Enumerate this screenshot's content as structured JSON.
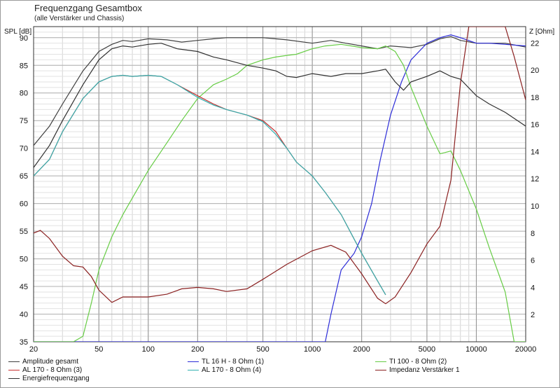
{
  "chart_data": {
    "type": "line",
    "title": "Frequenzgang Gesamtbox",
    "subtitle": "(alle Verstärker und Chassis)",
    "ylabel": "SPL [dB]",
    "y2label": "Z [Ohm]",
    "x_scale": "log",
    "xlim": [
      20,
      20000
    ],
    "ylim": [
      35,
      92
    ],
    "y2lim": [
      0,
      23.2
    ],
    "x_ticks": [
      20,
      50,
      100,
      200,
      500,
      1000,
      2000,
      5000,
      10000,
      20000
    ],
    "x_tick_labels": [
      "20",
      "50",
      "100",
      "200",
      "500",
      "1000",
      "2000",
      "5000",
      "10000",
      "20000"
    ],
    "y_ticks": [
      35,
      40,
      45,
      50,
      55,
      60,
      65,
      70,
      75,
      80,
      85,
      90
    ],
    "y2_ticks": [
      2,
      4,
      6,
      8,
      10,
      12,
      14,
      16,
      18,
      20,
      22
    ],
    "grid": true,
    "legend_position": "bottom",
    "series": [
      {
        "name": "Amplitude gesamt",
        "color": "#404040",
        "axis": "left",
        "x": [
          20,
          25,
          30,
          40,
          50,
          60,
          70,
          80,
          100,
          130,
          160,
          200,
          250,
          300,
          400,
          500,
          700,
          1000,
          1300,
          1600,
          2000,
          2500,
          3000,
          4000,
          5000,
          6000,
          7000,
          8000,
          10000,
          12000,
          15000,
          20000
        ],
        "y": [
          70.5,
          74,
          78,
          84,
          87.5,
          88.8,
          89.5,
          89.3,
          89.8,
          89.6,
          89.2,
          89.5,
          89.8,
          90,
          90,
          90,
          89.6,
          89,
          89.5,
          89,
          88.5,
          88,
          88.5,
          88.2,
          88.8,
          89.8,
          90.2,
          89.5,
          89,
          89,
          89,
          88.3
        ]
      },
      {
        "name": "TL 16 H - 8 Ohm (1)",
        "color": "#2c2cd8",
        "axis": "left",
        "x": [
          20,
          1100,
          1200,
          1300,
          1500,
          1800,
          2000,
          2300,
          2600,
          3000,
          3500,
          4000,
          5000,
          6000,
          7000,
          8000,
          10000,
          12000,
          15000,
          20000
        ],
        "y": [
          35,
          35,
          35,
          40,
          48,
          51,
          54,
          60,
          68,
          76,
          82,
          86,
          89,
          90,
          90.5,
          90,
          89,
          89,
          88.8,
          88.5
        ]
      },
      {
        "name": "TI 100 - 8 Ohm (2)",
        "color": "#66cc44",
        "axis": "left",
        "x": [
          20,
          35,
          40,
          45,
          50,
          60,
          70,
          80,
          100,
          130,
          160,
          200,
          250,
          300,
          350,
          400,
          500,
          600,
          700,
          800,
          1000,
          1200,
          1500,
          2000,
          2500,
          2800,
          3200,
          3600,
          4000,
          5000,
          6000,
          7000,
          8000,
          10000,
          12000,
          15000,
          17000,
          20000
        ],
        "y": [
          35,
          35,
          36,
          42,
          48,
          54,
          58,
          61,
          66,
          71,
          75,
          79,
          81.5,
          82.5,
          83.5,
          85,
          86,
          86.5,
          86.8,
          87,
          88,
          88.5,
          88.8,
          88.2,
          88,
          88.5,
          87.5,
          85,
          81,
          74,
          69,
          69.5,
          66,
          59,
          52,
          44,
          35,
          35
        ]
      },
      {
        "name": "AL 170 - 8 Ohm (3)",
        "color": "#c83030",
        "axis": "left",
        "x": [
          20,
          25,
          30,
          40,
          50,
          60,
          70,
          80,
          100,
          120,
          150,
          200,
          250,
          300,
          400,
          500,
          600,
          700,
          800,
          1000,
          1200,
          1500,
          2000,
          2500,
          2800
        ],
        "y": [
          65,
          68,
          73,
          79,
          82,
          83,
          83.2,
          83,
          83.2,
          83,
          81.5,
          79.5,
          78,
          77,
          76,
          75,
          73,
          70,
          67.5,
          65,
          62,
          58,
          51,
          46,
          43.5
        ]
      },
      {
        "name": "AL 170 - 8 Ohm (4)",
        "color": "#33b0b0",
        "axis": "left",
        "x": [
          20,
          25,
          30,
          40,
          50,
          60,
          70,
          80,
          100,
          120,
          150,
          200,
          250,
          300,
          400,
          500,
          600,
          700,
          800,
          1000,
          1200,
          1500,
          2000,
          2500,
          2800
        ],
        "y": [
          65,
          68,
          73,
          79,
          82,
          83,
          83.2,
          83,
          83.2,
          83,
          81.5,
          79.2,
          77.8,
          77,
          76,
          74.8,
          72.5,
          70,
          67.5,
          65,
          62,
          58,
          51,
          46,
          43.5
        ]
      },
      {
        "name": "Impedanz Verstärker 1",
        "color": "#8a2020",
        "axis": "right",
        "x": [
          20,
          22,
          25,
          30,
          35,
          40,
          45,
          50,
          60,
          70,
          80,
          100,
          130,
          160,
          200,
          250,
          300,
          400,
          500,
          700,
          1000,
          1300,
          1600,
          2000,
          2500,
          2800,
          3200,
          4000,
          5000,
          6000,
          7000,
          8000,
          9000,
          10000,
          12000,
          15000,
          17000,
          20000
        ],
        "y": [
          8,
          8.2,
          7.6,
          6.3,
          5.6,
          5.5,
          4.8,
          3.8,
          2.9,
          3.3,
          3.3,
          3.3,
          3.5,
          3.9,
          4.0,
          3.9,
          3.7,
          3.9,
          4.6,
          5.7,
          6.7,
          7.1,
          6.6,
          5.0,
          3.2,
          2.8,
          3.3,
          5.1,
          7.2,
          8.5,
          11.9,
          19,
          23.2,
          23.2,
          23.2,
          23.2,
          21,
          17.8
        ]
      },
      {
        "name": "Energiefrequenzgang",
        "color": "#303030",
        "axis": "left",
        "x": [
          20,
          25,
          30,
          40,
          50,
          60,
          70,
          80,
          100,
          120,
          150,
          200,
          250,
          300,
          400,
          500,
          600,
          700,
          800,
          1000,
          1300,
          1600,
          2000,
          2500,
          2800,
          3200,
          3600,
          4000,
          5000,
          6000,
          7000,
          8000,
          10000,
          12000,
          15000,
          20000
        ],
        "y": [
          66.5,
          70.5,
          75,
          81.5,
          86,
          88,
          88.5,
          88.3,
          88.8,
          89,
          88,
          87.5,
          86.5,
          86,
          85,
          84.5,
          84,
          83,
          82.8,
          83.5,
          83,
          83.5,
          83.5,
          84,
          84.3,
          82,
          80.5,
          82,
          83,
          84,
          83,
          82.5,
          79.5,
          78,
          76.5,
          74
        ]
      }
    ]
  }
}
